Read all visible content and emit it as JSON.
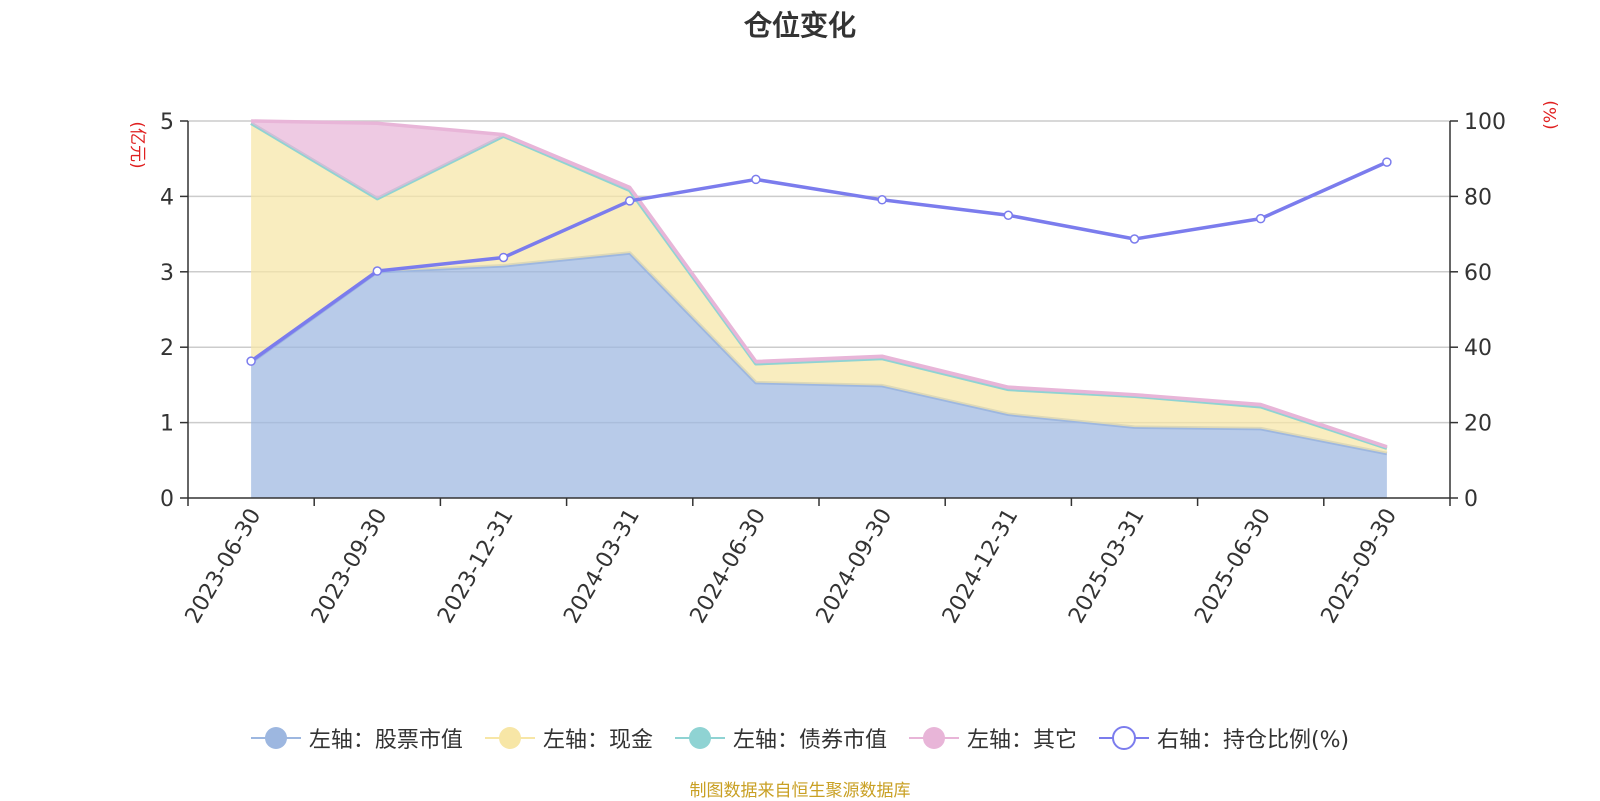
{
  "chart_data": {
    "type": "area",
    "title": "仓位变化",
    "categories": [
      "2023-06-30",
      "2023-09-30",
      "2023-12-31",
      "2024-03-31",
      "2024-06-30",
      "2024-09-30",
      "2024-12-31",
      "2025-03-31",
      "2025-06-30",
      "2025-09-30"
    ],
    "left_axis": {
      "label": "(亿元)",
      "range": [
        0,
        5
      ],
      "ticks": [
        "0",
        "1",
        "2",
        "3",
        "4",
        "5"
      ]
    },
    "right_axis": {
      "label": "(%)",
      "range": [
        0,
        100
      ],
      "ticks": [
        "0",
        "20",
        "40",
        "60",
        "80",
        "100"
      ]
    },
    "series": [
      {
        "name": "左轴：股票市值",
        "axis": "left",
        "kind": "stacked-area",
        "color": "#9db7e0",
        "values": [
          1.8,
          3.0,
          3.08,
          3.25,
          1.53,
          1.49,
          1.11,
          0.94,
          0.92,
          0.59
        ]
      },
      {
        "name": "左轴：现金",
        "axis": "left",
        "kind": "stacked-area",
        "color": "#f7e6a6",
        "values": [
          3.17,
          0.97,
          1.72,
          0.83,
          0.25,
          0.36,
          0.33,
          0.41,
          0.29,
          0.07
        ]
      },
      {
        "name": "左轴：债券市值",
        "axis": "left",
        "kind": "stacked-area",
        "color": "#8fd3d3",
        "values": [
          0,
          0,
          0,
          0,
          0,
          0,
          0,
          0,
          0,
          0
        ]
      },
      {
        "name": "左轴：其它",
        "axis": "left",
        "kind": "stacked-area",
        "color": "#e8b5d8",
        "values": [
          0.03,
          1.0,
          0.02,
          0.04,
          0.03,
          0.03,
          0.03,
          0.02,
          0.03,
          0.02
        ]
      },
      {
        "name": "右轴：持仓比例(%)",
        "axis": "right",
        "kind": "line",
        "color": "#7b7ced",
        "values": [
          36.3,
          60.2,
          63.8,
          78.8,
          84.5,
          79.1,
          75.0,
          68.7,
          74.1,
          89.1
        ]
      }
    ],
    "grid": true,
    "legend_position": "bottom"
  },
  "footer": {
    "credit": "制图数据来自恒生聚源数据库"
  }
}
